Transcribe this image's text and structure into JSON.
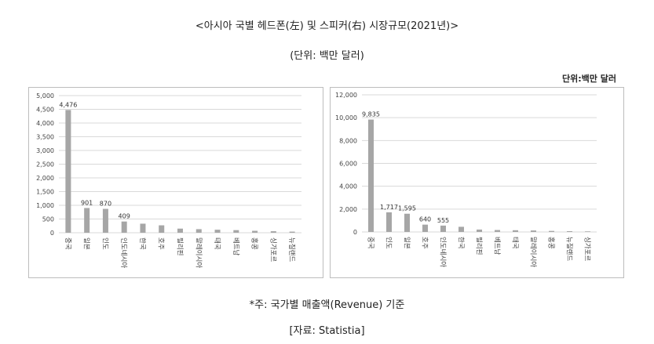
{
  "header": {
    "title": "<아시아 국별 헤드폰(左) 및 스피커(右) 시장규모(2021년)>",
    "unit": "(단위: 백만 달러)",
    "unit_right": "단위:백만 달러"
  },
  "footer": {
    "note": "*주: 국가별 매출액(Revenue) 기준",
    "source": "[자료: Statistia]"
  },
  "chart_data": [
    {
      "type": "bar",
      "categories": [
        "중국",
        "일본",
        "인도",
        "인도네시아",
        "한국",
        "호주",
        "필리핀",
        "말레이시아",
        "태국",
        "베트남",
        "홍콩",
        "싱가포르",
        "뉴질랜드"
      ],
      "values": [
        4476,
        901,
        870,
        409,
        330,
        270,
        150,
        130,
        110,
        95,
        70,
        55,
        40
      ],
      "data_labels": [
        "4,476",
        "901",
        "870",
        "409",
        "",
        "",
        "",
        "",
        "",
        "",
        "",
        "",
        ""
      ],
      "yticks": [
        "0",
        "500",
        "1,000",
        "1,500",
        "2,000",
        "2,500",
        "3,000",
        "3,500",
        "4,000",
        "4,500",
        "5,000"
      ],
      "ylim": [
        0,
        5000
      ],
      "grid": true,
      "bar_color": "#a6a6a6"
    },
    {
      "type": "bar",
      "categories": [
        "중국",
        "인도",
        "일본",
        "호주",
        "인도네시아",
        "한국",
        "필리핀",
        "베트남",
        "태국",
        "말레이시아",
        "홍콩",
        "뉴질랜드",
        "싱가포르"
      ],
      "values": [
        9835,
        1717,
        1595,
        640,
        555,
        450,
        210,
        170,
        150,
        130,
        90,
        70,
        50
      ],
      "data_labels": [
        "9,835",
        "1,717",
        "1,595",
        "640",
        "555",
        "",
        "",
        "",
        "",
        "",
        "",
        "",
        ""
      ],
      "yticks": [
        "0",
        "2,000",
        "4,000",
        "6,000",
        "8,000",
        "10,000",
        "12,000"
      ],
      "ylim": [
        0,
        12000
      ],
      "grid": true,
      "bar_color": "#a6a6a6"
    }
  ]
}
